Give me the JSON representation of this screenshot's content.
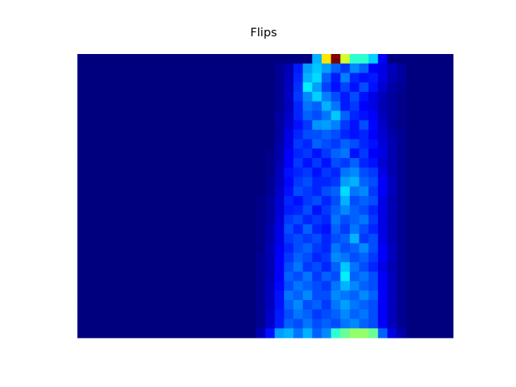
{
  "chart_data": {
    "type": "heatmap",
    "title": "Flips",
    "xlabel": "",
    "ylabel": "",
    "grid": false,
    "axes_visible": false,
    "colormap": [
      "#00007f",
      "#0000ff",
      "#007fff",
      "#00ffff",
      "#7fff7f",
      "#ffff00",
      "#ff7f00",
      "#ff0000",
      "#7f0000"
    ],
    "n_cols": 40,
    "n_rows": 30,
    "value_range": [
      0,
      1
    ],
    "row_order": "top-to-bottom",
    "values": [
      [
        0,
        0,
        0,
        0,
        0,
        0,
        0,
        0,
        0,
        0,
        0,
        0,
        0,
        0,
        0,
        0,
        0,
        0,
        0,
        0,
        0,
        0,
        0,
        0,
        0,
        0.3,
        0.65,
        1,
        0.58,
        0.42,
        0.42,
        0.33,
        0.12,
        0,
        0,
        0,
        0,
        0,
        0,
        0
      ],
      [
        0,
        0,
        0,
        0,
        0,
        0,
        0,
        0,
        0,
        0,
        0,
        0,
        0,
        0,
        0,
        0,
        0,
        0,
        0,
        0,
        0,
        0.02,
        0.05,
        0.15,
        0.28,
        0.32,
        0.28,
        0.22,
        0.18,
        0.26,
        0.22,
        0.12,
        0.1,
        0.06,
        0.03,
        0,
        0,
        0,
        0,
        0
      ],
      [
        0,
        0,
        0,
        0,
        0,
        0,
        0,
        0,
        0,
        0,
        0,
        0,
        0,
        0,
        0,
        0,
        0,
        0,
        0,
        0,
        0,
        0.02,
        0.06,
        0.16,
        0.3,
        0.34,
        0.22,
        0.15,
        0.25,
        0.16,
        0.14,
        0.15,
        0.1,
        0.05,
        0.03,
        0,
        0,
        0,
        0,
        0
      ],
      [
        0,
        0,
        0,
        0,
        0,
        0,
        0,
        0,
        0,
        0,
        0,
        0,
        0,
        0,
        0,
        0,
        0,
        0,
        0,
        0,
        0,
        0.02,
        0.06,
        0.17,
        0.36,
        0.28,
        0.19,
        0.14,
        0.19,
        0.14,
        0.2,
        0.14,
        0.08,
        0.04,
        0.02,
        0,
        0,
        0,
        0,
        0
      ],
      [
        0,
        0,
        0,
        0,
        0,
        0,
        0,
        0,
        0,
        0,
        0,
        0,
        0,
        0,
        0,
        0,
        0,
        0,
        0,
        0,
        0,
        0.02,
        0.07,
        0.18,
        0.26,
        0.33,
        0.25,
        0.2,
        0.15,
        0.2,
        0.14,
        0.1,
        0.06,
        0.03,
        0.01,
        0,
        0,
        0,
        0,
        0
      ],
      [
        0,
        0,
        0,
        0,
        0,
        0,
        0,
        0,
        0,
        0,
        0,
        0,
        0,
        0,
        0,
        0,
        0,
        0,
        0,
        0,
        0,
        0.02,
        0.06,
        0.16,
        0.24,
        0.22,
        0.3,
        0.24,
        0.15,
        0.18,
        0.12,
        0.1,
        0.05,
        0.03,
        0.01,
        0,
        0,
        0,
        0,
        0
      ],
      [
        0,
        0,
        0,
        0,
        0,
        0,
        0,
        0,
        0,
        0,
        0,
        0,
        0,
        0,
        0,
        0,
        0,
        0,
        0,
        0,
        0,
        0.03,
        0.07,
        0.16,
        0.22,
        0.2,
        0.24,
        0.32,
        0.22,
        0.16,
        0.14,
        0.12,
        0.06,
        0.03,
        0.01,
        0,
        0,
        0,
        0,
        0
      ],
      [
        0,
        0,
        0,
        0,
        0,
        0,
        0,
        0,
        0,
        0,
        0,
        0,
        0,
        0,
        0,
        0,
        0,
        0,
        0,
        0,
        0,
        0.03,
        0.08,
        0.14,
        0.18,
        0.27,
        0.28,
        0.25,
        0.18,
        0.14,
        0.2,
        0.13,
        0.07,
        0.03,
        0.01,
        0,
        0,
        0,
        0,
        0
      ],
      [
        0,
        0,
        0,
        0,
        0,
        0,
        0,
        0,
        0,
        0,
        0,
        0,
        0,
        0,
        0,
        0,
        0,
        0,
        0,
        0,
        0,
        0.03,
        0.1,
        0.16,
        0.2,
        0.2,
        0.22,
        0.2,
        0.16,
        0.14,
        0.16,
        0.12,
        0.08,
        0.04,
        0.02,
        0,
        0,
        0,
        0,
        0
      ],
      [
        0,
        0,
        0,
        0,
        0,
        0,
        0,
        0,
        0,
        0,
        0,
        0,
        0,
        0,
        0,
        0,
        0,
        0,
        0,
        0,
        0,
        0.04,
        0.1,
        0.18,
        0.16,
        0.22,
        0.2,
        0.18,
        0.22,
        0.2,
        0.16,
        0.14,
        0.09,
        0.05,
        0.02,
        0,
        0,
        0,
        0,
        0
      ],
      [
        0,
        0,
        0,
        0,
        0,
        0,
        0,
        0,
        0,
        0,
        0,
        0,
        0,
        0,
        0,
        0,
        0,
        0,
        0,
        0,
        0.01,
        0.04,
        0.12,
        0.16,
        0.18,
        0.14,
        0.18,
        0.22,
        0.24,
        0.14,
        0.18,
        0.12,
        0.1,
        0.05,
        0.02,
        0,
        0,
        0,
        0,
        0
      ],
      [
        0,
        0,
        0,
        0,
        0,
        0,
        0,
        0,
        0,
        0,
        0,
        0,
        0,
        0,
        0,
        0,
        0,
        0,
        0,
        0,
        0.01,
        0.05,
        0.12,
        0.18,
        0.14,
        0.18,
        0.14,
        0.2,
        0.18,
        0.22,
        0.16,
        0.14,
        0.08,
        0.05,
        0.02,
        0,
        0,
        0,
        0,
        0
      ],
      [
        0,
        0,
        0,
        0,
        0,
        0,
        0,
        0,
        0,
        0,
        0,
        0,
        0,
        0,
        0,
        0,
        0,
        0,
        0,
        0,
        0.01,
        0.06,
        0.14,
        0.16,
        0.18,
        0.14,
        0.18,
        0.16,
        0.24,
        0.26,
        0.2,
        0.18,
        0.1,
        0.05,
        0.02,
        0,
        0,
        0,
        0,
        0
      ],
      [
        0,
        0,
        0,
        0,
        0,
        0,
        0,
        0,
        0,
        0,
        0,
        0,
        0,
        0,
        0,
        0,
        0,
        0,
        0,
        0,
        0.02,
        0.06,
        0.13,
        0.18,
        0.2,
        0.16,
        0.16,
        0.18,
        0.28,
        0.3,
        0.22,
        0.2,
        0.12,
        0.06,
        0.02,
        0,
        0,
        0,
        0,
        0
      ],
      [
        0,
        0,
        0,
        0,
        0,
        0,
        0,
        0,
        0,
        0,
        0,
        0,
        0,
        0,
        0,
        0,
        0,
        0,
        0,
        0,
        0.02,
        0.07,
        0.14,
        0.2,
        0.18,
        0.16,
        0.2,
        0.22,
        0.34,
        0.24,
        0.26,
        0.18,
        0.12,
        0.06,
        0.02,
        0,
        0,
        0,
        0,
        0
      ],
      [
        0,
        0,
        0,
        0,
        0,
        0,
        0,
        0,
        0,
        0,
        0,
        0,
        0,
        0,
        0,
        0,
        0,
        0,
        0,
        0.01,
        0.03,
        0.08,
        0.16,
        0.14,
        0.18,
        0.2,
        0.16,
        0.2,
        0.3,
        0.2,
        0.22,
        0.2,
        0.1,
        0.05,
        0.02,
        0,
        0,
        0,
        0,
        0
      ],
      [
        0,
        0,
        0,
        0,
        0,
        0,
        0,
        0,
        0,
        0,
        0,
        0,
        0,
        0,
        0,
        0,
        0,
        0,
        0,
        0.01,
        0.03,
        0.08,
        0.15,
        0.16,
        0.2,
        0.14,
        0.18,
        0.22,
        0.26,
        0.22,
        0.2,
        0.16,
        0.1,
        0.05,
        0.02,
        0,
        0,
        0,
        0,
        0
      ],
      [
        0,
        0,
        0,
        0,
        0,
        0,
        0,
        0,
        0,
        0,
        0,
        0,
        0,
        0,
        0,
        0,
        0,
        0,
        0,
        0.01,
        0.03,
        0.09,
        0.18,
        0.2,
        0.16,
        0.18,
        0.16,
        0.24,
        0.2,
        0.22,
        0.24,
        0.18,
        0.1,
        0.05,
        0.02,
        0,
        0,
        0,
        0,
        0
      ],
      [
        0,
        0,
        0,
        0,
        0,
        0,
        0,
        0,
        0,
        0,
        0,
        0,
        0,
        0,
        0,
        0,
        0,
        0,
        0,
        0.01,
        0.04,
        0.1,
        0.2,
        0.16,
        0.22,
        0.16,
        0.14,
        0.22,
        0.18,
        0.24,
        0.2,
        0.16,
        0.1,
        0.05,
        0.02,
        0,
        0,
        0,
        0,
        0
      ],
      [
        0,
        0,
        0,
        0,
        0,
        0,
        0,
        0,
        0,
        0,
        0,
        0,
        0,
        0,
        0,
        0,
        0,
        0,
        0,
        0.01,
        0.04,
        0.1,
        0.18,
        0.2,
        0.18,
        0.2,
        0.16,
        0.2,
        0.22,
        0.3,
        0.18,
        0.2,
        0.1,
        0.05,
        0.02,
        0,
        0,
        0,
        0,
        0
      ],
      [
        0,
        0,
        0,
        0,
        0,
        0,
        0,
        0,
        0,
        0,
        0,
        0,
        0,
        0,
        0,
        0,
        0,
        0,
        0,
        0.01,
        0.05,
        0.11,
        0.16,
        0.2,
        0.22,
        0.18,
        0.16,
        0.24,
        0.2,
        0.22,
        0.26,
        0.2,
        0.12,
        0.06,
        0.02,
        0,
        0,
        0,
        0,
        0
      ],
      [
        0,
        0,
        0,
        0,
        0,
        0,
        0,
        0,
        0,
        0,
        0,
        0,
        0,
        0,
        0,
        0,
        0,
        0,
        0,
        0.02,
        0.05,
        0.12,
        0.18,
        0.22,
        0.2,
        0.16,
        0.18,
        0.26,
        0.24,
        0.2,
        0.22,
        0.18,
        0.12,
        0.06,
        0.02,
        0,
        0,
        0,
        0,
        0
      ],
      [
        0,
        0,
        0,
        0,
        0,
        0,
        0,
        0,
        0,
        0,
        0,
        0,
        0,
        0,
        0,
        0,
        0,
        0,
        0,
        0.02,
        0.05,
        0.12,
        0.2,
        0.24,
        0.18,
        0.2,
        0.16,
        0.22,
        0.32,
        0.24,
        0.2,
        0.16,
        0.1,
        0.05,
        0.02,
        0,
        0,
        0,
        0,
        0
      ],
      [
        0,
        0,
        0,
        0,
        0,
        0,
        0,
        0,
        0,
        0,
        0,
        0,
        0,
        0,
        0,
        0,
        0,
        0,
        0,
        0.02,
        0.05,
        0.12,
        0.22,
        0.2,
        0.24,
        0.18,
        0.22,
        0.2,
        0.36,
        0.22,
        0.24,
        0.2,
        0.12,
        0.06,
        0.02,
        0,
        0,
        0,
        0,
        0
      ],
      [
        0,
        0,
        0,
        0,
        0,
        0,
        0,
        0,
        0,
        0,
        0,
        0,
        0,
        0,
        0,
        0,
        0,
        0,
        0,
        0.02,
        0.06,
        0.13,
        0.2,
        0.24,
        0.22,
        0.2,
        0.18,
        0.24,
        0.3,
        0.26,
        0.22,
        0.2,
        0.12,
        0.06,
        0.02,
        0,
        0,
        0,
        0,
        0
      ],
      [
        0,
        0,
        0,
        0,
        0,
        0,
        0,
        0,
        0,
        0,
        0,
        0,
        0,
        0,
        0,
        0,
        0,
        0,
        0,
        0.02,
        0.06,
        0.14,
        0.24,
        0.22,
        0.26,
        0.2,
        0.2,
        0.26,
        0.24,
        0.22,
        0.26,
        0.22,
        0.12,
        0.06,
        0.02,
        0,
        0,
        0,
        0,
        0
      ],
      [
        0,
        0,
        0,
        0,
        0,
        0,
        0,
        0,
        0,
        0,
        0,
        0,
        0,
        0,
        0,
        0,
        0,
        0,
        0,
        0.02,
        0.06,
        0.14,
        0.22,
        0.26,
        0.2,
        0.22,
        0.18,
        0.24,
        0.28,
        0.24,
        0.22,
        0.2,
        0.12,
        0.06,
        0.02,
        0,
        0,
        0,
        0,
        0
      ],
      [
        0,
        0,
        0,
        0,
        0,
        0,
        0,
        0,
        0,
        0,
        0,
        0,
        0,
        0,
        0,
        0,
        0,
        0,
        0,
        0.02,
        0.07,
        0.15,
        0.2,
        0.24,
        0.22,
        0.18,
        0.2,
        0.22,
        0.26,
        0.22,
        0.24,
        0.2,
        0.12,
        0.06,
        0.02,
        0,
        0,
        0,
        0,
        0
      ],
      [
        0,
        0,
        0,
        0,
        0,
        0,
        0,
        0,
        0,
        0,
        0,
        0,
        0,
        0,
        0,
        0,
        0,
        0,
        0,
        0.02,
        0.07,
        0.15,
        0.22,
        0.2,
        0.24,
        0.2,
        0.22,
        0.2,
        0.24,
        0.26,
        0.22,
        0.2,
        0.12,
        0.06,
        0.02,
        0,
        0,
        0,
        0,
        0
      ],
      [
        0,
        0,
        0,
        0,
        0,
        0,
        0,
        0,
        0,
        0,
        0,
        0,
        0,
        0,
        0,
        0,
        0,
        0,
        0,
        0.05,
        0.14,
        0.28,
        0.3,
        0.24,
        0.3,
        0.22,
        0.26,
        0.42,
        0.48,
        0.52,
        0.52,
        0.48,
        0.22,
        0.1,
        0.04,
        0,
        0,
        0,
        0,
        0
      ]
    ]
  }
}
